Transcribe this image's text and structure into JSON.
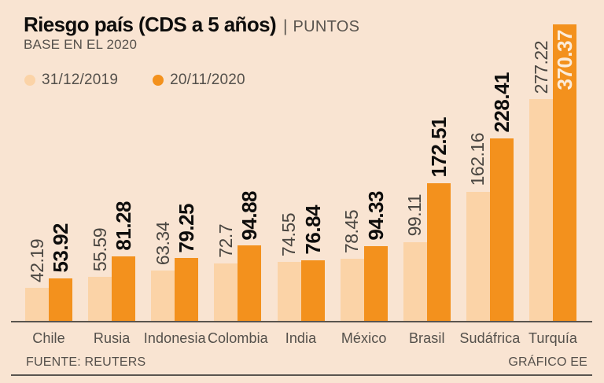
{
  "header": {
    "title": "Riesgo país (CDS a 5 años)",
    "separator": "|",
    "unit": "PUNTOS",
    "subtitle": "BASE EN EL 2020"
  },
  "legend": {
    "items": [
      {
        "label": "31/12/2019",
        "color": "#fbd3a7"
      },
      {
        "label": "20/11/2020",
        "color": "#f3911d"
      }
    ]
  },
  "chart_data": {
    "type": "bar",
    "title": "Riesgo país (CDS a 5 años)",
    "subtitle": "BASE EN EL 2020",
    "unit": "PUNTOS",
    "grid": false,
    "legend_position": "top-left",
    "ylim": [
      0,
      370.37
    ],
    "value_label_rotation_deg": 90,
    "categories": [
      "Chile",
      "Rusia",
      "Indonesia",
      "Colombia",
      "India",
      "México",
      "Brasil",
      "Sudáfrica",
      "Turquía"
    ],
    "series": [
      {
        "name": "31/12/2019",
        "color": "#fbd3a7",
        "label_color": "#4a4641",
        "label_weight": "normal",
        "values": [
          42.19,
          55.59,
          63.34,
          72.7,
          74.55,
          78.45,
          99.11,
          162.16,
          277.22
        ],
        "labels": [
          "42.19",
          "55.59",
          "63.34",
          "72.7",
          "74.55",
          "78.45",
          "99.11",
          "162.16",
          "277.22"
        ]
      },
      {
        "name": "20/11/2020",
        "color": "#f3911d",
        "label_color": "#0e0d0c",
        "label_weight": "bold",
        "values": [
          53.92,
          81.28,
          79.25,
          94.88,
          76.84,
          94.33,
          172.51,
          228.41,
          370.37
        ],
        "labels": [
          "53.92",
          "81.28",
          "79.25",
          "94.88",
          "76.84",
          "94.33",
          "172.51",
          "228.41",
          "370.37"
        ]
      }
    ],
    "inside_label": {
      "series_index": 1,
      "category_index": 8,
      "color": "#fcecd9"
    }
  },
  "footer": {
    "source": "FUENTE: REUTERS",
    "credit": "GRÁFICO EE"
  },
  "colors": {
    "background": "#f9e4d2",
    "axis": "#5a554f",
    "rule": "#5a554f"
  }
}
